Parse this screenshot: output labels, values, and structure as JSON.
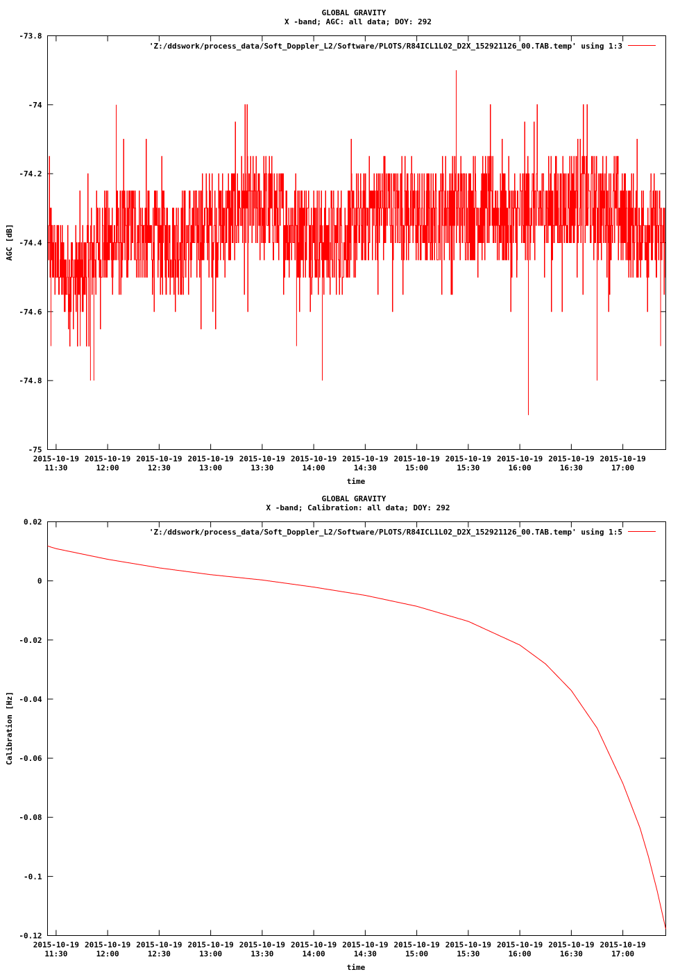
{
  "chart_data": [
    {
      "type": "line",
      "title": "GLOBAL GRAVITY",
      "subtitle": "X -band; AGC: all data; DOY: 292",
      "xlabel": "time",
      "ylabel": "AGC [dB]",
      "ylim": [
        -75,
        -73.8
      ],
      "yticks": [
        "-73.8",
        "-74",
        "-74.2",
        "-74.4",
        "-74.6",
        "-74.8",
        "-75"
      ],
      "ytick_values": [
        -73.8,
        -74,
        -74.2,
        -74.4,
        -74.6,
        -74.8,
        -75
      ],
      "xlim": [
        "2015-10-19 11:25",
        "2015-10-19 17:25"
      ],
      "xtick_dates": [
        "2015-10-19",
        "2015-10-19",
        "2015-10-19",
        "2015-10-19",
        "2015-10-19",
        "2015-10-19",
        "2015-10-19",
        "2015-10-19",
        "2015-10-19",
        "2015-10-19",
        "2015-10-19",
        "2015-10-19"
      ],
      "xtick_times": [
        "11:30",
        "12:00",
        "12:30",
        "13:00",
        "13:30",
        "14:00",
        "14:30",
        "15:00",
        "15:30",
        "16:00",
        "16:30",
        "17:00"
      ],
      "legend": "top-right",
      "grid": false,
      "color": "#ff0000",
      "series": [
        {
          "name": "'Z:/ddswork/process_data/Soft_Doppler_L2/Software/PLOTS/R84ICL1L02_D2X_152921126_00.TAB.temp' using 1:3",
          "x": [
            "11:25",
            "11:35",
            "11:45",
            "11:55",
            "12:05",
            "12:15",
            "12:25",
            "12:35",
            "12:45",
            "12:55",
            "13:05",
            "13:15",
            "13:25",
            "13:35",
            "13:45",
            "13:55",
            "14:05",
            "14:15",
            "14:25",
            "14:35",
            "14:45",
            "14:55",
            "15:05",
            "15:15",
            "15:25",
            "15:35",
            "15:45",
            "15:55",
            "16:05",
            "16:15",
            "16:25",
            "16:35",
            "16:45",
            "16:55",
            "17:05",
            "17:15",
            "17:25"
          ],
          "values": [
            -74.4,
            -74.5,
            -74.5,
            -74.4,
            -74.4,
            -74.35,
            -74.4,
            -74.4,
            -74.4,
            -74.35,
            -74.35,
            -74.3,
            -74.3,
            -74.3,
            -74.35,
            -74.35,
            -74.4,
            -74.4,
            -74.35,
            -74.3,
            -74.3,
            -74.3,
            -74.35,
            -74.3,
            -74.3,
            -74.3,
            -74.3,
            -74.35,
            -74.3,
            -74.3,
            -74.3,
            -74.25,
            -74.3,
            -74.3,
            -74.35,
            -74.35,
            -74.4
          ],
          "mean": -74.35,
          "typical_range": [
            -74.5,
            -74.2
          ],
          "extremes": [
            {
              "x": "11:27",
              "y": -74.7
            },
            {
              "x": "11:44",
              "y": -74.7
            },
            {
              "x": "11:50",
              "y": -74.8
            },
            {
              "x": "11:52",
              "y": -74.8
            },
            {
              "x": "12:05",
              "y": -74
            },
            {
              "x": "13:50",
              "y": -74.7
            },
            {
              "x": "14:05",
              "y": -74.8
            },
            {
              "x": "15:23",
              "y": -73.9
            },
            {
              "x": "16:05",
              "y": -74.9
            },
            {
              "x": "16:05",
              "y": -74.8
            },
            {
              "x": "16:45",
              "y": -74.8
            },
            {
              "x": "17:22",
              "y": -74.7
            }
          ]
        }
      ]
    },
    {
      "type": "line",
      "title": "GLOBAL GRAVITY",
      "subtitle": "X -band; Calibration: all data; DOY: 292",
      "xlabel": "time",
      "ylabel": "Calibration [Hz]",
      "ylim": [
        -0.12,
        0.02
      ],
      "yticks": [
        "0.02",
        "0",
        "-0.02",
        "-0.04",
        "-0.06",
        "-0.08",
        "-0.1",
        "-0.12"
      ],
      "ytick_values": [
        0.02,
        0,
        -0.02,
        -0.04,
        -0.06,
        -0.08,
        -0.1,
        -0.12
      ],
      "xlim": [
        "2015-10-19 11:25",
        "2015-10-19 17:25"
      ],
      "xtick_dates": [
        "2015-10-19",
        "2015-10-19",
        "2015-10-19",
        "2015-10-19",
        "2015-10-19",
        "2015-10-19",
        "2015-10-19",
        "2015-10-19",
        "2015-10-19",
        "2015-10-19",
        "2015-10-19",
        "2015-10-19"
      ],
      "xtick_times": [
        "11:30",
        "12:00",
        "12:30",
        "13:00",
        "13:30",
        "14:00",
        "14:30",
        "15:00",
        "15:30",
        "16:00",
        "16:30",
        "17:00"
      ],
      "legend": "top-right",
      "grid": false,
      "color": "#ff0000",
      "series": [
        {
          "name": "'Z:/ddswork/process_data/Soft_Doppler_L2/Software/PLOTS/R84ICL1L02_D2X_152921126_00.TAB.temp' using 1:5",
          "x": [
            "11:25",
            "11:30",
            "12:00",
            "12:30",
            "13:00",
            "13:30",
            "14:00",
            "14:30",
            "15:00",
            "15:30",
            "16:00",
            "16:15",
            "16:30",
            "16:45",
            "17:00",
            "17:10",
            "17:15",
            "17:20",
            "17:25"
          ],
          "values": [
            0.0118,
            0.0109,
            0.0073,
            0.0044,
            0.0021,
            0.0003,
            -0.0021,
            -0.0049,
            -0.0086,
            -0.0137,
            -0.0217,
            -0.0281,
            -0.0371,
            -0.0498,
            -0.0685,
            -0.0836,
            -0.0935,
            -0.1049,
            -0.1178
          ]
        }
      ]
    }
  ]
}
